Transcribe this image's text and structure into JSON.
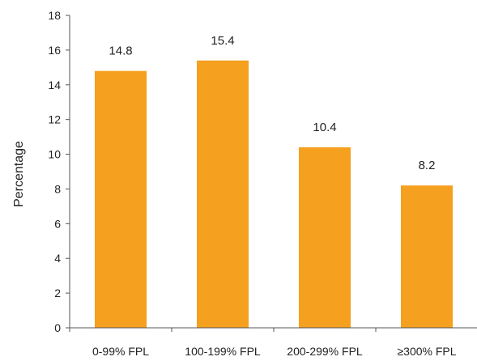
{
  "chart_data": {
    "type": "bar",
    "categories": [
      "0-99% FPL",
      "100-199% FPL",
      "200-299% FPL",
      "≥300% FPL"
    ],
    "values": [
      14.8,
      15.4,
      10.4,
      8.2
    ],
    "data_labels": [
      "14.8",
      "15.4",
      "10.4",
      "8.2"
    ],
    "xlabel": "",
    "ylabel": "Percentage",
    "ylim": [
      0,
      18
    ],
    "yticks": [
      0,
      2,
      4,
      6,
      8,
      10,
      12,
      14,
      16,
      18
    ],
    "grid": false,
    "legend": "none",
    "bar_color": "#F5A01E"
  }
}
